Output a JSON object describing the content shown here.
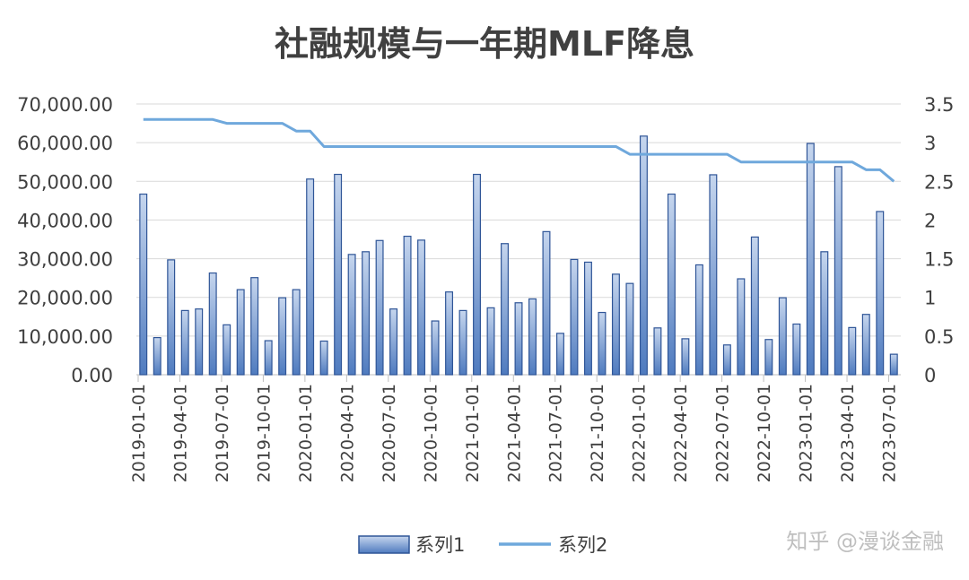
{
  "chart_data": {
    "type": "bar+line",
    "title": "社融规模与一年期MLF降息",
    "categories": [
      "2019-01",
      "2019-02",
      "2019-03",
      "2019-04",
      "2019-05",
      "2019-06",
      "2019-07",
      "2019-08",
      "2019-09",
      "2019-10",
      "2019-11",
      "2019-12",
      "2020-01",
      "2020-02",
      "2020-03",
      "2020-04",
      "2020-05",
      "2020-06",
      "2020-07",
      "2020-08",
      "2020-09",
      "2020-10",
      "2020-11",
      "2020-12",
      "2021-01",
      "2021-02",
      "2021-03",
      "2021-04",
      "2021-05",
      "2021-06",
      "2021-07",
      "2021-08",
      "2021-09",
      "2021-10",
      "2021-11",
      "2021-12",
      "2022-01",
      "2022-02",
      "2022-03",
      "2022-04",
      "2022-05",
      "2022-06",
      "2022-07",
      "2022-08",
      "2022-09",
      "2022-10",
      "2022-11",
      "2022-12",
      "2023-01",
      "2023-02",
      "2023-03",
      "2023-04",
      "2023-05",
      "2023-06",
      "2023-07"
    ],
    "x_tick_labels": [
      "2019-01-01",
      "2019-04-01",
      "2019-07-01",
      "2019-10-01",
      "2020-01-01",
      "2020-04-01",
      "2020-07-01",
      "2020-10-01",
      "2021-01-01",
      "2021-04-01",
      "2021-07-01",
      "2021-10-01",
      "2022-01-01",
      "2022-04-01",
      "2022-07-01",
      "2022-10-01",
      "2023-01-01",
      "2023-04-01",
      "2023-07-01"
    ],
    "series": [
      {
        "name": "系列1",
        "type": "bar",
        "axis": "left",
        "values": [
          46700,
          9600,
          29700,
          16600,
          17000,
          26300,
          12900,
          22000,
          25100,
          8800,
          19900,
          22000,
          50600,
          8700,
          51800,
          31100,
          31800,
          34700,
          17000,
          35800,
          34800,
          13900,
          21400,
          16600,
          51800,
          17300,
          33900,
          18600,
          19600,
          37000,
          10700,
          29800,
          29100,
          16100,
          26000,
          23600,
          61700,
          12100,
          46700,
          9300,
          28400,
          51700,
          7700,
          24800,
          35600,
          9100,
          19900,
          13100,
          59800,
          31800,
          53800,
          12200,
          15600,
          42200,
          5300
        ]
      },
      {
        "name": "系列2",
        "type": "line",
        "axis": "right",
        "values": [
          3.3,
          3.3,
          3.3,
          3.3,
          3.3,
          3.3,
          3.25,
          3.25,
          3.25,
          3.25,
          3.25,
          3.15,
          3.15,
          2.95,
          2.95,
          2.95,
          2.95,
          2.95,
          2.95,
          2.95,
          2.95,
          2.95,
          2.95,
          2.95,
          2.95,
          2.95,
          2.95,
          2.95,
          2.95,
          2.95,
          2.95,
          2.95,
          2.95,
          2.95,
          2.95,
          2.85,
          2.85,
          2.85,
          2.85,
          2.85,
          2.85,
          2.85,
          2.85,
          2.75,
          2.75,
          2.75,
          2.75,
          2.75,
          2.75,
          2.75,
          2.75,
          2.75,
          2.65,
          2.65,
          2.5
        ]
      }
    ],
    "y_left": {
      "min": 0,
      "max": 70000,
      "step": 10000,
      "tick_labels": [
        "0.00",
        "10,000.00",
        "20,000.00",
        "30,000.00",
        "40,000.00",
        "50,000.00",
        "60,000.00",
        "70,000.00"
      ]
    },
    "y_right": {
      "min": 0,
      "max": 3.5,
      "step": 0.5,
      "tick_labels": [
        "0",
        "0.5",
        "1",
        "1.5",
        "2",
        "2.5",
        "3",
        "3.5"
      ]
    },
    "grid": true,
    "legend": "bottom",
    "colors": {
      "bar_fill_top": "#c6d6ee",
      "bar_fill_bottom": "#4f7bbf",
      "bar_stroke": "#2f5597",
      "line": "#6fa8dc",
      "grid": "#d9d9d9",
      "text": "#404040"
    }
  },
  "watermark": "知乎 @漫谈金融"
}
